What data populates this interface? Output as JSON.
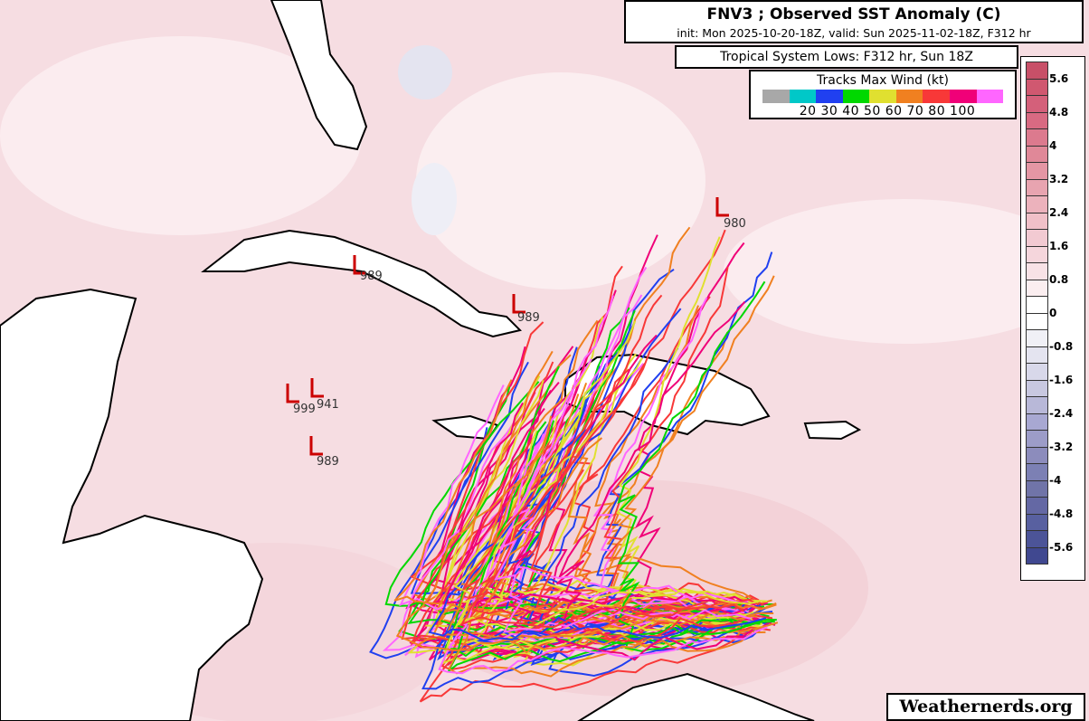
{
  "header": {
    "title": "FNV3 ; Observed SST Anomaly (C)",
    "subtitle": "init: Mon 2025-10-20-18Z, valid: Sun 2025-11-02-18Z, F312 hr",
    "lows_label": "Tropical System Lows: F312 hr, Sun 18Z"
  },
  "wind_legend": {
    "title": "Tracks Max Wind (kt)",
    "labels": "20 30 40 50 60 70 80 100",
    "colors": [
      "#a8a8a8",
      "#00c8c8",
      "#2040f0",
      "#00d800",
      "#e0e030",
      "#f08020",
      "#f83838",
      "#f00078",
      "#ff66ff"
    ]
  },
  "colorbar": {
    "ticks": [
      "5.6",
      "4.8",
      "4",
      "3.2",
      "2.4",
      "1.6",
      "0.8",
      "0",
      "-0.8",
      "-1.6",
      "-2.4",
      "-3.2",
      "-4",
      "-4.8",
      "-5.6"
    ],
    "colors": [
      "#c85068",
      "#d05870",
      "#d4607a",
      "#d86a82",
      "#dc7a8e",
      "#e08898",
      "#e496a4",
      "#e8a4b0",
      "#ecb2bc",
      "#f0c0c8",
      "#f2cad2",
      "#f5d6dc",
      "#f8e2e6",
      "#fbeef0",
      "#ffffff",
      "#ffffff",
      "#f0f0f6",
      "#e4e4f0",
      "#d8d8ea",
      "#c8c8e0",
      "#b8b8d8",
      "#a8a8d2",
      "#9c9cc8",
      "#8c8cbc",
      "#7c80b4",
      "#7074a8",
      "#6468a4",
      "#5860a0",
      "#4c5498",
      "#404890"
    ]
  },
  "lows": [
    {
      "pressure": "980"
    },
    {
      "pressure": "989"
    },
    {
      "pressure": "989"
    },
    {
      "pressure": "999"
    },
    {
      "pressure": "941"
    },
    {
      "pressure": "989"
    }
  ],
  "watermark": "Weathernerds.org"
}
